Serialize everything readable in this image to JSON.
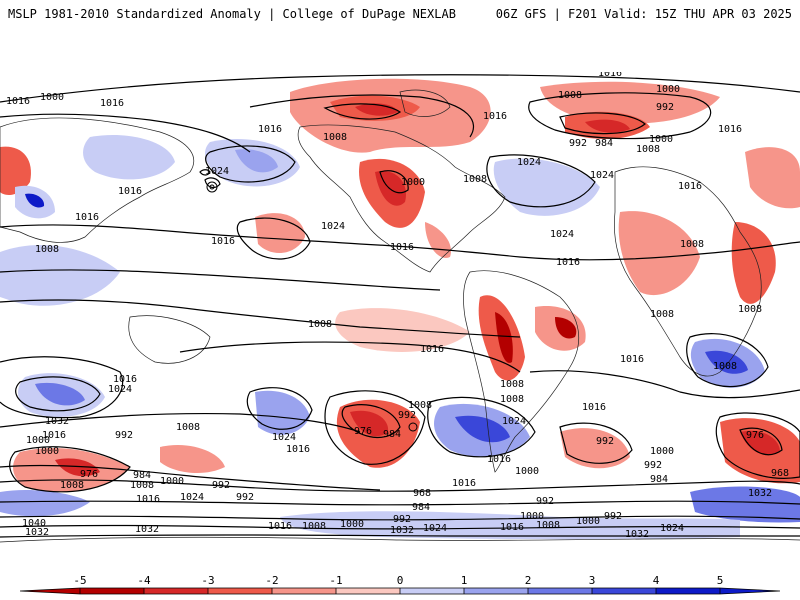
{
  "header": {
    "left_text": "MSLP 1981-2010 Standardized Anomaly | College of DuPage NEXLAB",
    "right_text": "06Z GFS | F201 Valid: 15Z THU APR 03 2025"
  },
  "colorbar": {
    "ticks": [
      "-5",
      "-4",
      "-3",
      "-2",
      "-1",
      "0",
      "1",
      "2",
      "3",
      "4",
      "5"
    ],
    "neg_colors": [
      "#b30000",
      "#d62828",
      "#ee5a4a",
      "#f6958a",
      "#fbc8c0"
    ],
    "pos_colors": [
      "#c8cdf5",
      "#9aa3ee",
      "#6c78e6",
      "#3a47d9",
      "#0d1ac8"
    ],
    "neutral": "#ffffff"
  },
  "isobar_labels": [
    "1016",
    "1008",
    "1000",
    "992",
    "1016",
    "1016",
    "1008",
    "1000",
    "984",
    "992",
    "1000",
    "1008",
    "1016",
    "1016",
    "1024",
    "1008",
    "1016",
    "1024",
    "1000",
    "1008",
    "1024",
    "1024",
    "1016",
    "1008",
    "1016",
    "1016",
    "1016",
    "1008",
    "1008",
    "1008",
    "1016",
    "1016",
    "1024",
    "1016",
    "1024",
    "1016",
    "1008",
    "1016",
    "1032",
    "1016",
    "1000",
    "976",
    "984",
    "1008",
    "1016",
    "1000",
    "1024",
    "992",
    "1008",
    "992",
    "1024",
    "1016",
    "992",
    "1008",
    "976",
    "984",
    "1008",
    "1024",
    "1016",
    "1016",
    "1000",
    "968",
    "984",
    "992",
    "992",
    "1000",
    "992",
    "1008",
    "992",
    "976",
    "968",
    "1000",
    "984",
    "1032",
    "1040",
    "1032",
    "1032",
    "1016",
    "1008",
    "1000",
    "992",
    "1032",
    "1024",
    "1016",
    "1008",
    "1000",
    "992",
    "1016",
    "1008",
    "1024",
    "1032",
    "1000"
  ]
}
